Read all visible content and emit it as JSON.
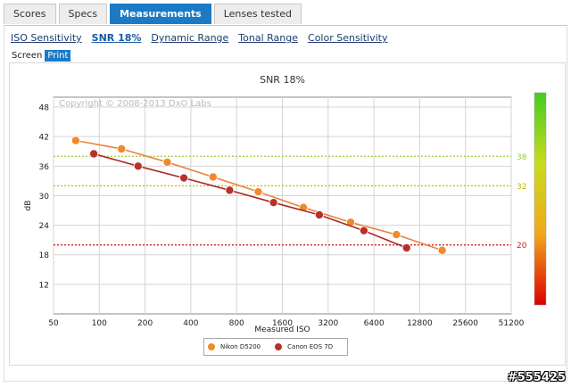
{
  "tabs": [
    {
      "label": "Scores",
      "active": false
    },
    {
      "label": "Specs",
      "active": false
    },
    {
      "label": "Measurements",
      "active": true
    },
    {
      "label": "Lenses tested",
      "active": false
    }
  ],
  "subtabs": [
    {
      "label": "ISO Sensitivity",
      "active": false
    },
    {
      "label": "SNR 18%",
      "active": true
    },
    {
      "label": "Dynamic Range",
      "active": false
    },
    {
      "label": "Tonal Range",
      "active": false
    },
    {
      "label": "Color Sensitivity",
      "active": false
    }
  ],
  "modes": [
    {
      "label": "Screen",
      "active": false
    },
    {
      "label": "Print",
      "active": true
    }
  ],
  "watermark": "#555425",
  "chart_data": {
    "type": "line",
    "title": "SNR 18%",
    "copyright": "Copyright © 2008-2013 DxO Labs",
    "xlabel": "Measured ISO",
    "ylabel": "dB",
    "x_scale": "log2",
    "xlim": [
      50,
      51200
    ],
    "ylim": [
      6,
      50
    ],
    "x_ticks": [
      50,
      100,
      200,
      400,
      800,
      1600,
      3200,
      6400,
      12800,
      25600,
      51200
    ],
    "y_ticks": [
      12,
      18,
      24,
      30,
      36,
      42,
      48
    ],
    "grid": true,
    "legend_position": "bottom",
    "reference_lines": [
      {
        "value": 38,
        "label": "38",
        "color": "#99cc33"
      },
      {
        "value": 32,
        "label": "32",
        "color": "#c8b400"
      },
      {
        "value": 20,
        "label": "20",
        "color": "#cc2222"
      }
    ],
    "scale_bar": {
      "colors": [
        "#44cc22",
        "#c8dc1e",
        "#f0a81e",
        "#dd0000"
      ]
    },
    "series": [
      {
        "name": "Nikon D5200",
        "color": "#f08a2a",
        "line_color": "#e8823a",
        "x": [
          70,
          140,
          280,
          560,
          1110,
          2200,
          4500,
          9000,
          18000
        ],
        "y": [
          41.2,
          39.5,
          36.8,
          33.8,
          30.8,
          27.6,
          24.6,
          22.1,
          18.9
        ]
      },
      {
        "name": "Canon EOS 7D",
        "color": "#b8302a",
        "line_color": "#a82a26",
        "x": [
          92,
          180,
          360,
          720,
          1400,
          2800,
          5500,
          10500
        ],
        "y": [
          38.5,
          36.0,
          33.6,
          31.1,
          28.6,
          26.1,
          22.9,
          19.4
        ]
      }
    ]
  }
}
